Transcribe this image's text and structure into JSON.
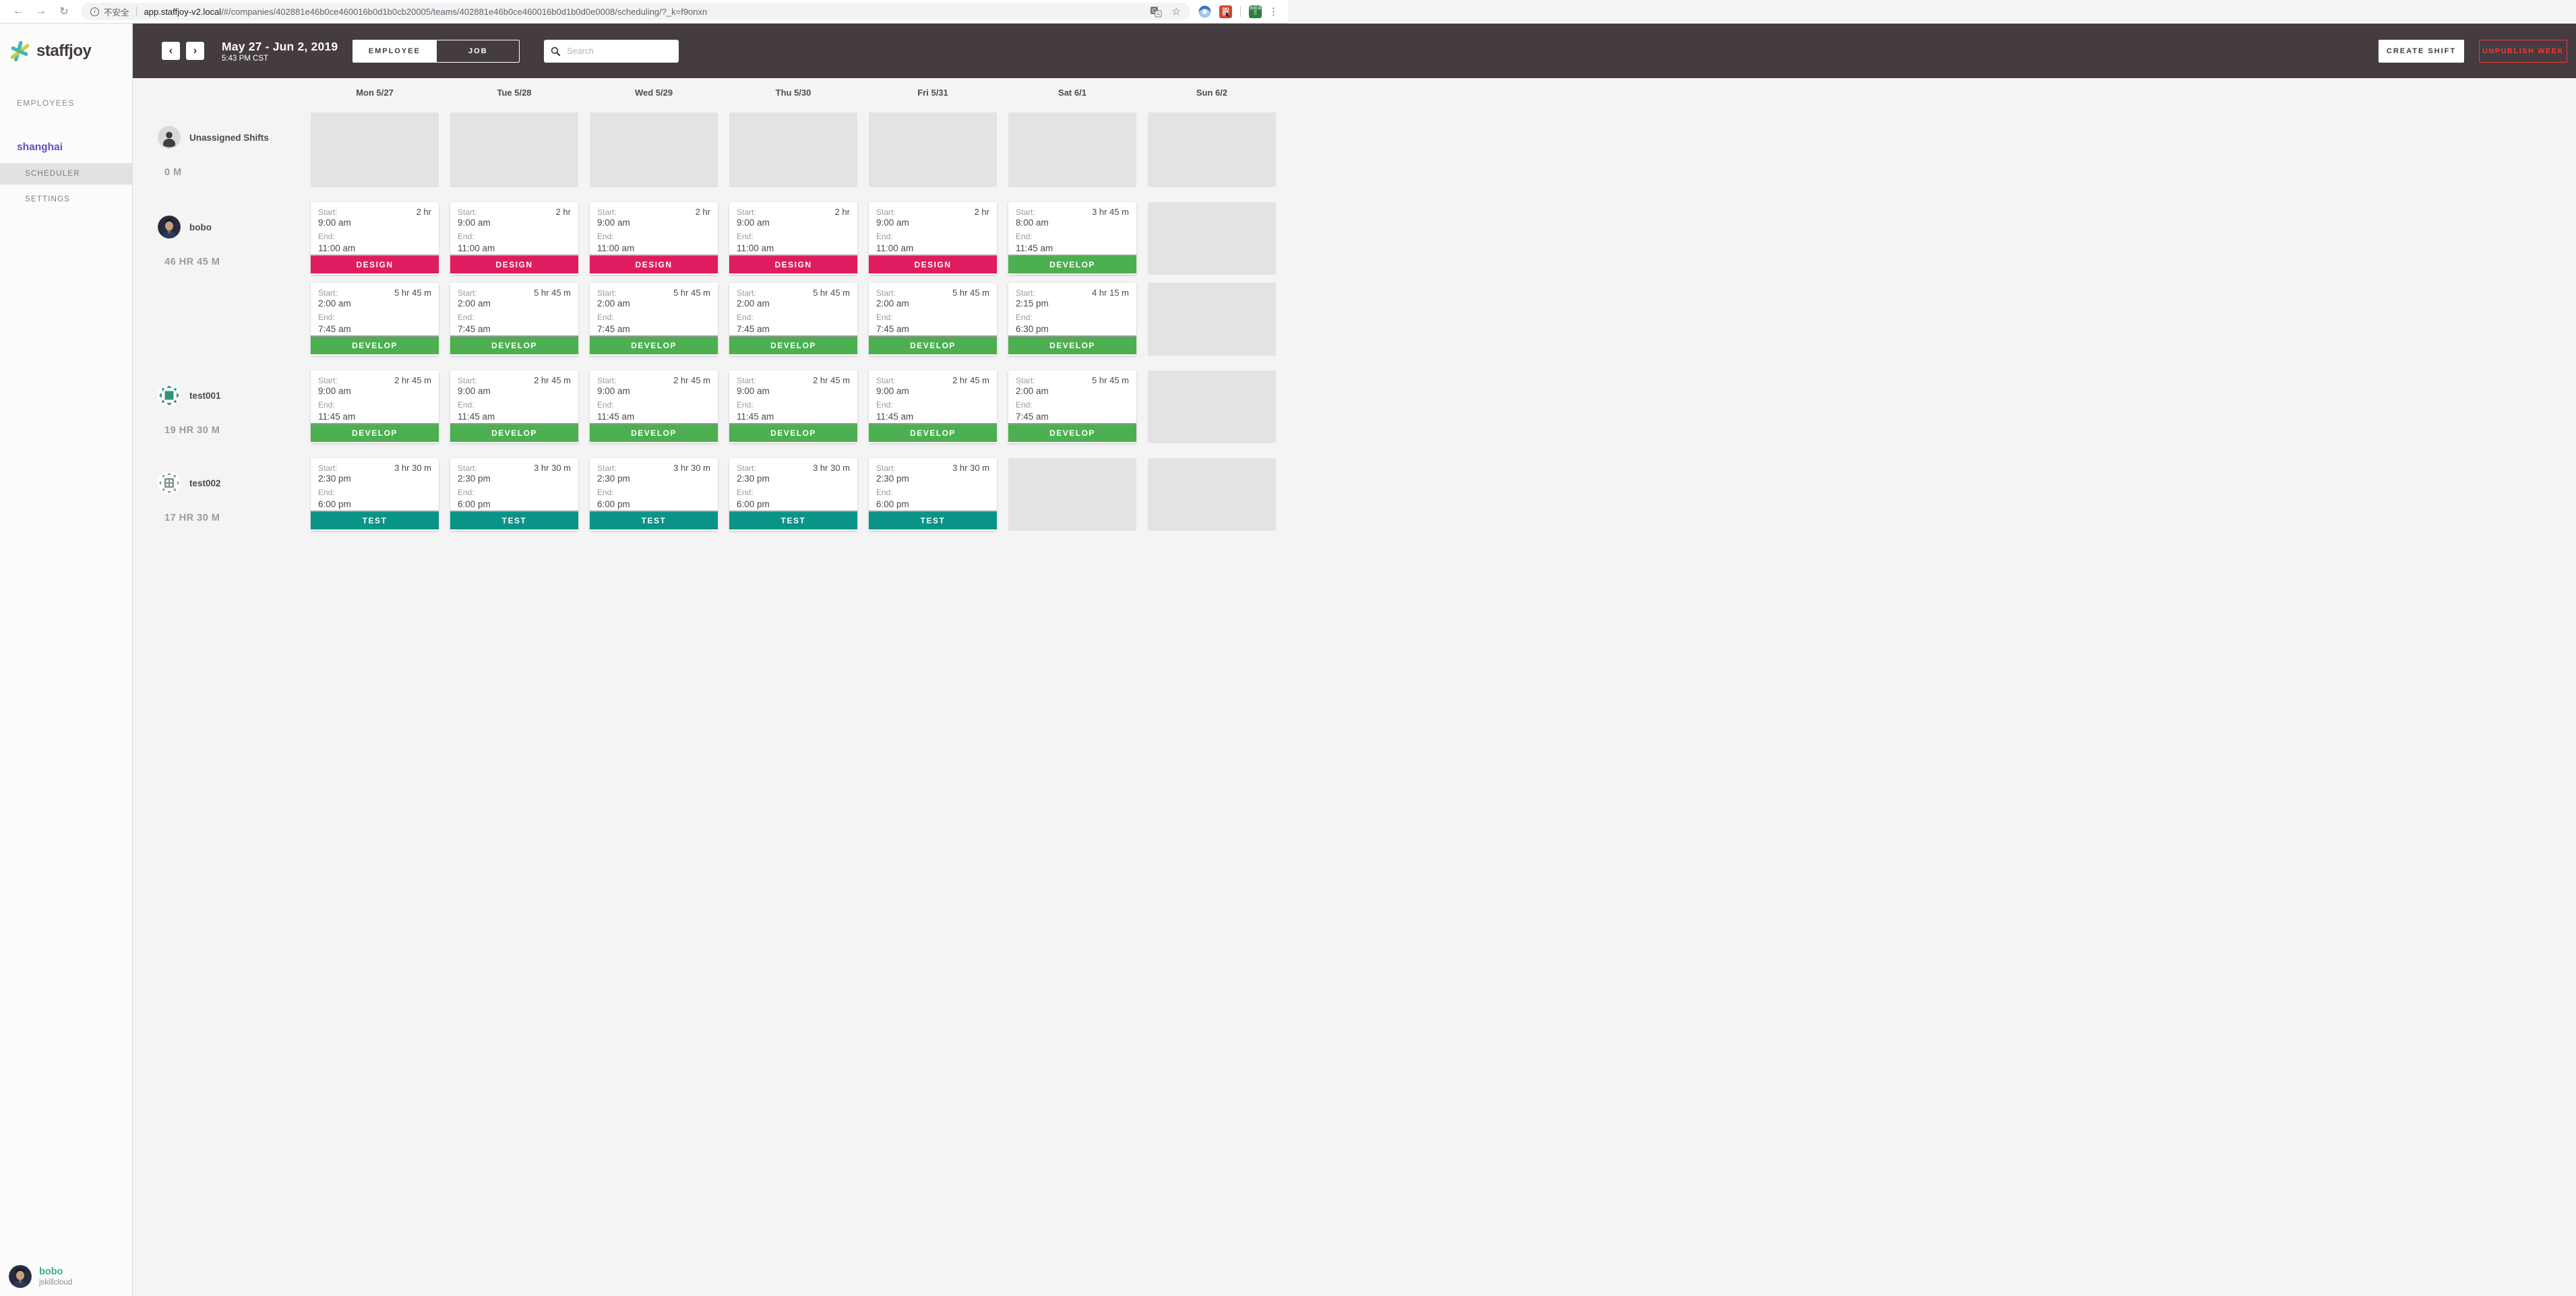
{
  "browser": {
    "back_icon": "←",
    "forward_icon": "→",
    "reload_icon": "↻",
    "info_icon": "i",
    "security_label": "不安全",
    "url_host": "app.staffjoy-v2.local",
    "url_path": "/#/companies/402881e46b0ce460016b0d1b0cb20005/teams/402881e46b0ce460016b0d1b0d0e0008/scheduling/?_k=f9onxn",
    "star_icon": "☆",
    "extension_badge_text": "微掘课艺",
    "menu_icon": "⋮"
  },
  "sidebar": {
    "brand": "staffjoy",
    "employees_label": "EMPLOYEES",
    "team_name": "shanghai",
    "scheduler_label": "SCHEDULER",
    "settings_label": "SETTINGS",
    "user_name": "bobo",
    "user_company": "jskillcloud"
  },
  "header": {
    "prev_icon": "‹",
    "next_icon": "›",
    "date_range": "May 27 - Jun 2, 2019",
    "time": "5:43 PM CST",
    "employee_toggle": "EMPLOYEE",
    "job_toggle": "JOB",
    "search_placeholder": "Search",
    "create_shift": "CREATE SHIFT",
    "unpublish_week": "UNPUBLISH WEEK"
  },
  "calendar": {
    "days": [
      "Mon 5/27",
      "Tue 5/28",
      "Wed 5/29",
      "Thu 5/30",
      "Fri 5/31",
      "Sat 6/1",
      "Sun 6/2"
    ],
    "labels": {
      "start": "Start:",
      "end": "End:"
    },
    "jobs": {
      "DESIGN": "#e01b60",
      "DEVELOP": "#4caf50",
      "TEST": "#0a9488"
    },
    "rows": [
      {
        "name": "Unassigned Shifts",
        "hours": "0 M",
        "avatar": "person",
        "sub_rows": [
          [
            null,
            null,
            null,
            null,
            null,
            null,
            null
          ]
        ]
      },
      {
        "name": "bobo",
        "hours": "46 HR 45 M",
        "avatar": "bobo",
        "sub_rows": [
          [
            {
              "start": "9:00 am",
              "end": "11:00 am",
              "dur": "2 hr",
              "job": "DESIGN"
            },
            {
              "start": "9:00 am",
              "end": "11:00 am",
              "dur": "2 hr",
              "job": "DESIGN"
            },
            {
              "start": "9:00 am",
              "end": "11:00 am",
              "dur": "2 hr",
              "job": "DESIGN"
            },
            {
              "start": "9:00 am",
              "end": "11:00 am",
              "dur": "2 hr",
              "job": "DESIGN"
            },
            {
              "start": "9:00 am",
              "end": "11:00 am",
              "dur": "2 hr",
              "job": "DESIGN"
            },
            {
              "start": "8:00 am",
              "end": "11:45 am",
              "dur": "3 hr 45 m",
              "job": "DEVELOP"
            },
            null
          ],
          [
            {
              "start": "2:00 am",
              "end": "7:45 am",
              "dur": "5 hr 45 m",
              "job": "DEVELOP"
            },
            {
              "start": "2:00 am",
              "end": "7:45 am",
              "dur": "5 hr 45 m",
              "job": "DEVELOP"
            },
            {
              "start": "2:00 am",
              "end": "7:45 am",
              "dur": "5 hr 45 m",
              "job": "DEVELOP"
            },
            {
              "start": "2:00 am",
              "end": "7:45 am",
              "dur": "5 hr 45 m",
              "job": "DEVELOP"
            },
            {
              "start": "2:00 am",
              "end": "7:45 am",
              "dur": "5 hr 45 m",
              "job": "DEVELOP"
            },
            {
              "start": "2:15 pm",
              "end": "6:30 pm",
              "dur": "4 hr 15 m",
              "job": "DEVELOP"
            },
            null
          ]
        ]
      },
      {
        "name": "test001",
        "hours": "19 HR 30 M",
        "avatar": "identicon-teal",
        "sub_rows": [
          [
            {
              "start": "9:00 am",
              "end": "11:45 am",
              "dur": "2 hr 45 m",
              "job": "DEVELOP"
            },
            {
              "start": "9:00 am",
              "end": "11:45 am",
              "dur": "2 hr 45 m",
              "job": "DEVELOP"
            },
            {
              "start": "9:00 am",
              "end": "11:45 am",
              "dur": "2 hr 45 m",
              "job": "DEVELOP"
            },
            {
              "start": "9:00 am",
              "end": "11:45 am",
              "dur": "2 hr 45 m",
              "job": "DEVELOP"
            },
            {
              "start": "9:00 am",
              "end": "11:45 am",
              "dur": "2 hr 45 m",
              "job": "DEVELOP"
            },
            {
              "start": "2:00 am",
              "end": "7:45 am",
              "dur": "5 hr 45 m",
              "job": "DEVELOP"
            },
            null
          ]
        ]
      },
      {
        "name": "test002",
        "hours": "17 HR 30 M",
        "avatar": "identicon-green",
        "sub_rows": [
          [
            {
              "start": "2:30 pm",
              "end": "6:00 pm",
              "dur": "3 hr 30 m",
              "job": "TEST"
            },
            {
              "start": "2:30 pm",
              "end": "6:00 pm",
              "dur": "3 hr 30 m",
              "job": "TEST"
            },
            {
              "start": "2:30 pm",
              "end": "6:00 pm",
              "dur": "3 hr 30 m",
              "job": "TEST"
            },
            {
              "start": "2:30 pm",
              "end": "6:00 pm",
              "dur": "3 hr 30 m",
              "job": "TEST"
            },
            {
              "start": "2:30 pm",
              "end": "6:00 pm",
              "dur": "3 hr 30 m",
              "job": "TEST"
            },
            null,
            null
          ]
        ]
      }
    ]
  }
}
